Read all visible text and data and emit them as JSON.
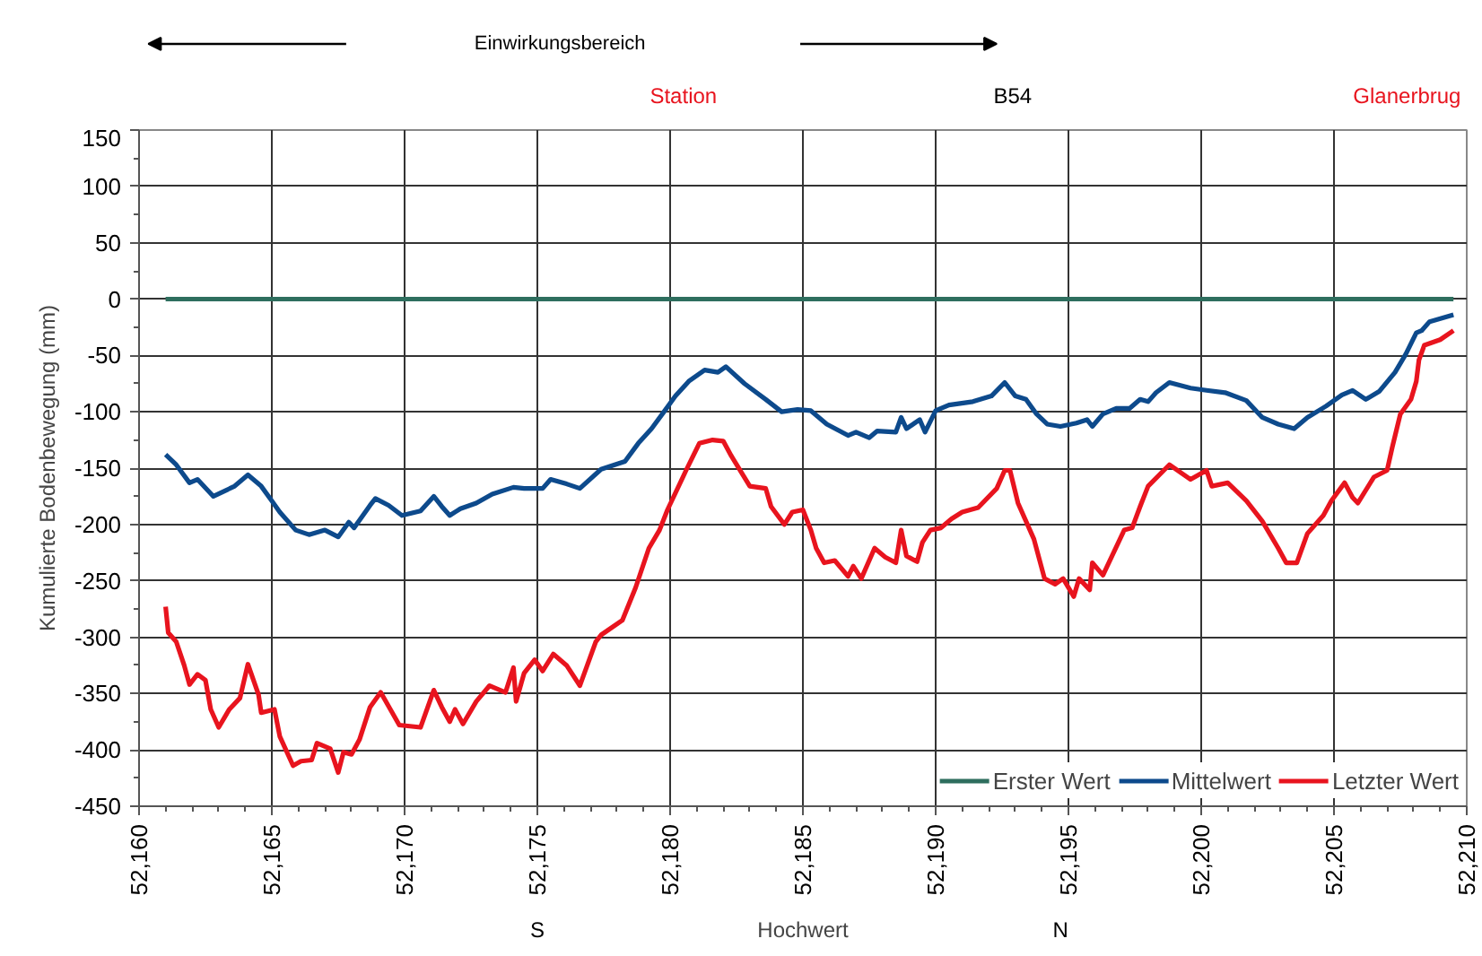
{
  "chart_data": {
    "type": "line",
    "xlabel": "Hochwert",
    "ylabel": "Kumulierte Bodenbewegung (mm)",
    "annotations": [
      "Einwirkungsbereich",
      "Station",
      "B54",
      "Glanerbrug",
      "S",
      "N"
    ],
    "xlim": [
      52160,
      52210
    ],
    "xticks": [
      {
        "value": 52160,
        "label": "52,160"
      },
      {
        "value": 52165,
        "label": "52,165"
      },
      {
        "value": 52170,
        "label": "52,170"
      },
      {
        "value": 52175,
        "label": "52,175"
      },
      {
        "value": 52180,
        "label": "52,180"
      },
      {
        "value": 52185,
        "label": "52,185"
      },
      {
        "value": 52190,
        "label": "52,190"
      },
      {
        "value": 52195,
        "label": "52,195"
      },
      {
        "value": 52200,
        "label": "52,200"
      },
      {
        "value": 52205,
        "label": "52,205"
      },
      {
        "value": 52210,
        "label": "52,210"
      }
    ],
    "ylim": [
      -450,
      150
    ],
    "yticks": [
      -450,
      -400,
      -350,
      -300,
      -250,
      -200,
      -150,
      -100,
      -50,
      0,
      50,
      100,
      150
    ],
    "grid": true,
    "legend": "bottom right",
    "marker": "none",
    "line_style": "solid",
    "series": [
      {
        "name": "Erster Wert",
        "color": "#2e6e5e",
        "x": [
          52161.0,
          52209.5
        ],
        "values": [
          0,
          0
        ]
      },
      {
        "name": "Mittelwert",
        "color": "#0d4a8c",
        "x": [
          52161.0,
          52161.4,
          52161.9,
          52162.2,
          52162.8,
          52163.6,
          52164.1,
          52164.6,
          52165.0,
          52165.3,
          52165.9,
          52166.4,
          52167.0,
          52167.5,
          52167.9,
          52168.1,
          52168.7,
          52168.9,
          52169.4,
          52169.9,
          52170.6,
          52171.1,
          52171.4,
          52171.7,
          52172.1,
          52172.7,
          52173.3,
          52174.1,
          52174.5,
          52175.2,
          52175.5,
          52176.1,
          52176.6,
          52177.4,
          52178.3,
          52178.8,
          52179.3,
          52179.8,
          52180.2,
          52180.7,
          52181.3,
          52181.8,
          52182.1,
          52182.8,
          52183.6,
          52184.2,
          52184.8,
          52185.3,
          52185.9,
          52186.7,
          52187.0,
          52187.5,
          52187.8,
          52188.5,
          52188.7,
          52188.9,
          52189.4,
          52189.6,
          52190.0,
          52190.5,
          52191.4,
          52192.1,
          52192.6,
          52193.0,
          52193.4,
          52193.8,
          52194.2,
          52194.7,
          52195.3,
          52195.7,
          52195.9,
          52196.3,
          52196.8,
          52197.3,
          52197.7,
          52198.0,
          52198.3,
          52198.8,
          52199.6,
          52200.2,
          52200.9,
          52201.7,
          52202.3,
          52202.9,
          52203.5,
          52204.0,
          52204.7,
          52205.3,
          52205.7,
          52206.2,
          52206.7,
          52207.3,
          52207.7,
          52208.1,
          52208.3,
          52208.6,
          52209.5
        ],
        "values": [
          -138,
          -147,
          -163,
          -160,
          -175,
          -166,
          -156,
          -166,
          -179,
          -189,
          -205,
          -209,
          -205,
          -211,
          -198,
          -203,
          -183,
          -177,
          -183,
          -192,
          -188,
          -175,
          -184,
          -192,
          -186,
          -181,
          -173,
          -167,
          -168,
          -168,
          -160,
          -164,
          -168,
          -151,
          -144,
          -128,
          -115,
          -99,
          -86,
          -73,
          -63,
          -65,
          -60,
          -75,
          -89,
          -100,
          -98,
          -99,
          -111,
          -121,
          -118,
          -123,
          -117,
          -118,
          -105,
          -115,
          -107,
          -118,
          -99,
          -94,
          -91,
          -86,
          -74,
          -86,
          -89,
          -102,
          -111,
          -113,
          -110,
          -107,
          -113,
          -102,
          -97,
          -97,
          -89,
          -91,
          -83,
          -74,
          -79,
          -81,
          -83,
          -90,
          -105,
          -111,
          -115,
          -105,
          -95,
          -85,
          -81,
          -89,
          -82,
          -65,
          -49,
          -30,
          -28,
          -20,
          -14
        ]
      },
      {
        "name": "Letzter Wert",
        "color": "#e8141e",
        "x": [
          52161.0,
          52161.1,
          52161.4,
          52161.7,
          52161.9,
          52162.2,
          52162.5,
          52162.7,
          52163.0,
          52163.4,
          52163.8,
          52164.1,
          52164.5,
          52164.6,
          52165.1,
          52165.3,
          52165.8,
          52166.1,
          52166.5,
          52166.7,
          52167.2,
          52167.5,
          52167.7,
          52168.0,
          52168.3,
          52168.7,
          52169.1,
          52169.8,
          52170.6,
          52171.1,
          52171.4,
          52171.7,
          52171.9,
          52172.2,
          52172.7,
          52173.2,
          52173.8,
          52174.1,
          52174.2,
          52174.5,
          52174.9,
          52175.2,
          52175.6,
          52176.1,
          52176.6,
          52177.2,
          52177.4,
          52178.2,
          52178.7,
          52179.2,
          52179.6,
          52179.9,
          52180.6,
          52181.1,
          52181.6,
          52182.0,
          52182.3,
          52183.0,
          52183.6,
          52183.8,
          52184.3,
          52184.6,
          52185.0,
          52185.3,
          52185.5,
          52185.8,
          52186.2,
          52186.7,
          52186.9,
          52187.2,
          52187.7,
          52188.1,
          52188.5,
          52188.7,
          52188.9,
          52189.3,
          52189.5,
          52189.8,
          52190.2,
          52190.6,
          52191.0,
          52191.6,
          52192.3,
          52192.6,
          52192.8,
          52193.1,
          52193.7,
          52194.1,
          52194.5,
          52194.8,
          52195.2,
          52195.4,
          52195.8,
          52195.9,
          52196.3,
          52197.1,
          52197.4,
          52197.7,
          52198.0,
          52198.8,
          52199.6,
          52200.2,
          52200.4,
          52201.0,
          52201.7,
          52202.3,
          52202.9,
          52203.2,
          52203.6,
          52204.0,
          52204.6,
          52204.9,
          52205.4,
          52205.7,
          52205.9,
          52206.5,
          52207.0,
          52207.2,
          52207.5,
          52207.9,
          52208.1,
          52208.2,
          52208.4,
          52209.0,
          52209.5
        ],
        "values": [
          -273,
          -296,
          -304,
          -325,
          -342,
          -333,
          -338,
          -364,
          -380,
          -364,
          -354,
          -324,
          -351,
          -367,
          -364,
          -388,
          -414,
          -410,
          -409,
          -394,
          -399,
          -420,
          -402,
          -404,
          -391,
          -362,
          -349,
          -378,
          -380,
          -347,
          -362,
          -375,
          -364,
          -377,
          -357,
          -343,
          -349,
          -327,
          -357,
          -332,
          -320,
          -330,
          -315,
          -325,
          -343,
          -304,
          -298,
          -285,
          -256,
          -221,
          -205,
          -187,
          -152,
          -128,
          -125,
          -126,
          -139,
          -166,
          -168,
          -184,
          -200,
          -189,
          -187,
          -205,
          -221,
          -234,
          -232,
          -246,
          -237,
          -248,
          -221,
          -229,
          -234,
          -205,
          -228,
          -233,
          -216,
          -205,
          -203,
          -195,
          -189,
          -185,
          -168,
          -152,
          -152,
          -181,
          -213,
          -248,
          -253,
          -248,
          -264,
          -248,
          -258,
          -234,
          -245,
          -205,
          -203,
          -184,
          -166,
          -147,
          -160,
          -152,
          -166,
          -163,
          -179,
          -197,
          -221,
          -234,
          -234,
          -208,
          -192,
          -179,
          -163,
          -176,
          -181,
          -158,
          -152,
          -131,
          -102,
          -89,
          -73,
          -54,
          -41,
          -36,
          -28
        ]
      }
    ]
  }
}
